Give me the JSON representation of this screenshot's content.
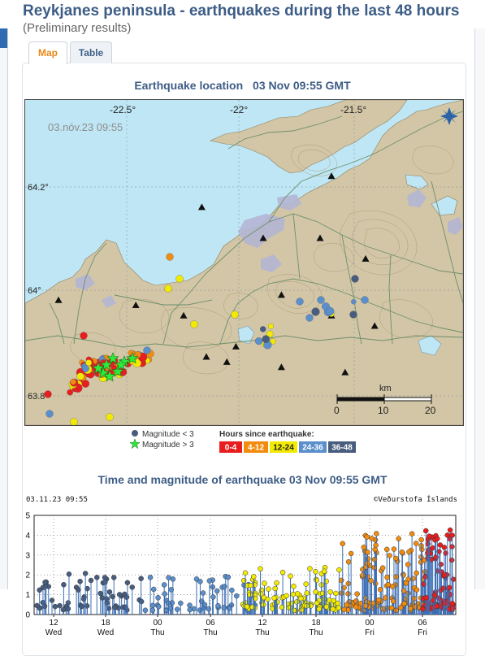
{
  "page": {
    "title": "Reykjanes peninsula - earthquakes during the last 48 hours",
    "subtitle": "(Preliminary results)"
  },
  "tabs": [
    {
      "label": "Map",
      "active": true
    },
    {
      "label": "Table",
      "active": false
    }
  ],
  "map": {
    "title": "Earthquake location",
    "timestamp": "03 Nov 09:55 GMT",
    "overlay_time": "03.nóv.23  09:55",
    "lon_labels": [
      "-22.5°",
      "-22°",
      "-21.5°"
    ],
    "lat_labels": [
      "64.2°",
      "64°",
      "63.8"
    ],
    "scale": {
      "unit": "km",
      "ticks": [
        "0",
        "10",
        "20"
      ]
    },
    "compass_icon": "compass-rose-icon",
    "colors": {
      "sea": "#bfe6f4",
      "land": "#d2c6a6",
      "glacier": "#b3b6d4",
      "roads": "#6e8f6a"
    },
    "stations": [
      {
        "lat": 64.16,
        "lon": -22.17
      },
      {
        "lat": 64.1,
        "lon": -21.9
      },
      {
        "lat": 64.22,
        "lon": -21.6
      },
      {
        "lat": 64.1,
        "lon": -21.65
      },
      {
        "lat": 64.06,
        "lon": -21.45
      },
      {
        "lat": 63.98,
        "lon": -22.8
      },
      {
        "lat": 63.97,
        "lon": -22.46
      },
      {
        "lat": 63.99,
        "lon": -21.82
      },
      {
        "lat": 63.95,
        "lon": -21.6
      },
      {
        "lat": 63.93,
        "lon": -21.41
      },
      {
        "lat": 63.95,
        "lon": -22.25
      },
      {
        "lat": 63.87,
        "lon": -22.15
      },
      {
        "lat": 63.86,
        "lon": -22.06
      },
      {
        "lat": 63.89,
        "lon": -22.02
      },
      {
        "lat": 63.85,
        "lon": -21.82
      },
      {
        "lat": 63.84,
        "lon": -21.54
      },
      {
        "lat": 63.82,
        "lon": -22.72
      },
      {
        "lat": 63.84,
        "lon": -22.7
      }
    ]
  },
  "legend": {
    "mag_small": "Magnitude < 3",
    "mag_large": "Magnitude > 3",
    "hours_title": "Hours since earthquake:",
    "hours": [
      {
        "label": "0-4",
        "color": "#e81e1e",
        "text_color": "#ffffff"
      },
      {
        "label": "4-12",
        "color": "#f28c0f",
        "text_color": "#ffffff"
      },
      {
        "label": "12-24",
        "color": "#f2ea00",
        "text_color": "#222222"
      },
      {
        "label": "24-36",
        "color": "#5b8fcc",
        "text_color": "#ffffff"
      },
      {
        "label": "36-48",
        "color": "#485d7e",
        "text_color": "#ffffff"
      }
    ]
  },
  "timeline": {
    "title": "Time and magnitude of earthquake",
    "timestamp": "03 Nov 09:55 GMT",
    "corner_time": "03.11.23 09:55",
    "credit": "©Veðurstofa Íslands",
    "y_ticks": [
      "0",
      "1",
      "2",
      "3",
      "4",
      "5"
    ],
    "ylim": [
      0,
      5
    ],
    "x_ticks": [
      {
        "hour": "12",
        "day": "Wed"
      },
      {
        "hour": "18",
        "day": "Wed"
      },
      {
        "hour": "00",
        "day": "Thu"
      },
      {
        "hour": "06",
        "day": "Thu"
      },
      {
        "hour": "12",
        "day": "Thu"
      },
      {
        "hour": "18",
        "day": "Thu"
      },
      {
        "hour": "00",
        "day": "Fri"
      },
      {
        "hour": "06",
        "day": "Fri"
      }
    ]
  }
}
